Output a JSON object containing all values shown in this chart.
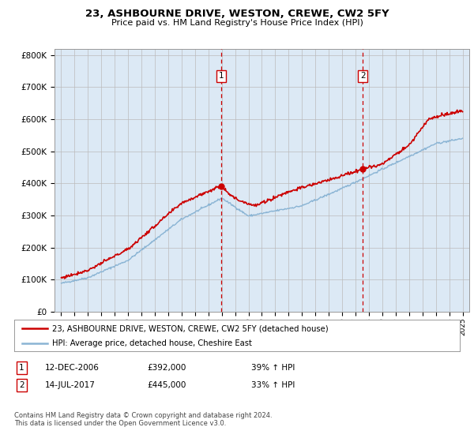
{
  "title": "23, ASHBOURNE DRIVE, WESTON, CREWE, CW2 5FY",
  "subtitle": "Price paid vs. HM Land Registry's House Price Index (HPI)",
  "background_color": "#dce9f5",
  "legend_line1": "23, ASHBOURNE DRIVE, WESTON, CREWE, CW2 5FY (detached house)",
  "legend_line2": "HPI: Average price, detached house, Cheshire East",
  "ann1_label": "1",
  "ann1_date": "12-DEC-2006",
  "ann1_price": "£392,000",
  "ann1_hpi": "39% ↑ HPI",
  "ann2_label": "2",
  "ann2_date": "14-JUL-2017",
  "ann2_price": "£445,000",
  "ann2_hpi": "33% ↑ HPI",
  "footer": "Contains HM Land Registry data © Crown copyright and database right 2024.\nThis data is licensed under the Open Government Licence v3.0.",
  "red_color": "#cc0000",
  "blue_color": "#8ab4d4",
  "marker1_x": 2006.95,
  "marker1_y": 392000,
  "marker2_x": 2017.54,
  "marker2_y": 445000,
  "ylim": [
    0,
    820000
  ],
  "xlim": [
    1994.5,
    2025.5
  ]
}
